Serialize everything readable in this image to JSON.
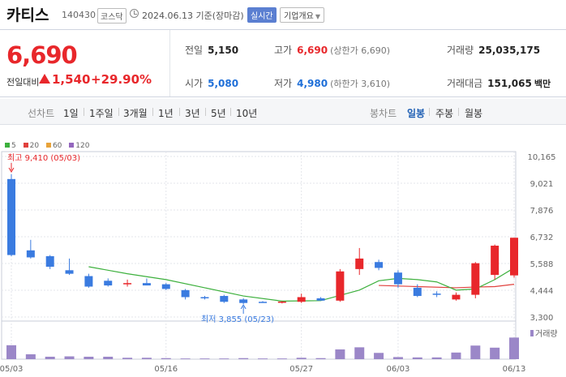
{
  "header": {
    "name": "카티스",
    "code": "140430",
    "market": "코스닥",
    "date": "2024.06.13",
    "basis": "기준(장마감)",
    "realtime": "실시간",
    "company_info": "기업개요"
  },
  "price": {
    "current": "6,690",
    "change_label": "전일대비",
    "change": "1,540",
    "change_pct": "+29.90%"
  },
  "stats": {
    "prev_label": "전일",
    "prev": "5,150",
    "high_label": "고가",
    "high": "6,690",
    "upper_limit": "(상한가 6,690)",
    "volume_label": "거래량",
    "volume": "25,035,175",
    "open_label": "시가",
    "open": "5,080",
    "low_label": "저가",
    "low": "4,980",
    "lower_limit": "(하한가 3,610)",
    "amount_label": "거래대금",
    "amount": "151,065",
    "amount_unit": "백만"
  },
  "period_bar": {
    "line_label": "선차트",
    "periods": [
      "1일",
      "1주일",
      "3개월",
      "1년",
      "3년",
      "5년",
      "10년"
    ],
    "candle_label": "봉차트",
    "candles": [
      "일봉",
      "주봉",
      "월봉"
    ],
    "candle_selected": "일봉"
  },
  "colors": {
    "up": "#e8272b",
    "down": "#3a7be0",
    "ma5": "#3db03d",
    "ma20": "#e0413d",
    "ma60": "#e8a33a",
    "ma120": "#9467bd",
    "volume": "#9b87c8"
  },
  "chart_data": {
    "type": "candlestick",
    "legend": [
      {
        "name": "5",
        "color": "#3db03d"
      },
      {
        "name": "20",
        "color": "#e0413d"
      },
      {
        "name": "60",
        "color": "#e8a33a"
      },
      {
        "name": "120",
        "color": "#9467bd"
      }
    ],
    "y_ticks": [
      "10,165",
      "9,021",
      "7,876",
      "6,732",
      "5,588",
      "4,444",
      "3,300"
    ],
    "ylim": [
      3300,
      10165
    ],
    "x_ticks": [
      {
        "label": "05/03",
        "index": 0
      },
      {
        "label": "05/16",
        "index": 8
      },
      {
        "label": "05/27",
        "index": 15
      },
      {
        "label": "06/03",
        "index": 20
      },
      {
        "label": "06/13",
        "index": 26
      }
    ],
    "annotations": {
      "high": "최고 9,410 (05/03)",
      "low": "최저 3,855 (05/23)"
    },
    "volume_label": "거래량",
    "candles": [
      {
        "o": 9200,
        "h": 9410,
        "l": 5900,
        "c": 5950
      },
      {
        "o": 6150,
        "h": 6600,
        "l": 5800,
        "c": 5850
      },
      {
        "o": 5900,
        "h": 5950,
        "l": 5350,
        "c": 5450
      },
      {
        "o": 5300,
        "h": 5800,
        "l": 5100,
        "c": 5150
      },
      {
        "o": 5050,
        "h": 5150,
        "l": 4550,
        "c": 4600
      },
      {
        "o": 4850,
        "h": 4950,
        "l": 4600,
        "c": 4650
      },
      {
        "o": 4700,
        "h": 4900,
        "l": 4600,
        "c": 4750
      },
      {
        "o": 4750,
        "h": 4950,
        "l": 4650,
        "c": 4650
      },
      {
        "o": 4700,
        "h": 4750,
        "l": 4450,
        "c": 4500
      },
      {
        "o": 4450,
        "h": 4500,
        "l": 4050,
        "c": 4150
      },
      {
        "o": 4150,
        "h": 4200,
        "l": 4050,
        "c": 4100
      },
      {
        "o": 4200,
        "h": 4250,
        "l": 3900,
        "c": 3950
      },
      {
        "o": 4050,
        "h": 4100,
        "l": 3855,
        "c": 3900
      },
      {
        "o": 3950,
        "h": 3980,
        "l": 3920,
        "c": 3940
      },
      {
        "o": 3930,
        "h": 3980,
        "l": 3880,
        "c": 3960
      },
      {
        "o": 3950,
        "h": 4300,
        "l": 3900,
        "c": 4150
      },
      {
        "o": 4100,
        "h": 4150,
        "l": 4000,
        "c": 4000
      },
      {
        "o": 4000,
        "h": 5350,
        "l": 3950,
        "c": 5250
      },
      {
        "o": 5350,
        "h": 6250,
        "l": 5100,
        "c": 5800
      },
      {
        "o": 5650,
        "h": 5750,
        "l": 5300,
        "c": 5400
      },
      {
        "o": 5200,
        "h": 5300,
        "l": 4550,
        "c": 4700
      },
      {
        "o": 4550,
        "h": 4700,
        "l": 4150,
        "c": 4200
      },
      {
        "o": 4300,
        "h": 4400,
        "l": 4150,
        "c": 4250
      },
      {
        "o": 4050,
        "h": 4350,
        "l": 4000,
        "c": 4250
      },
      {
        "o": 4250,
        "h": 5650,
        "l": 4100,
        "c": 5600
      },
      {
        "o": 5100,
        "h": 6400,
        "l": 4900,
        "c": 6350
      },
      {
        "o": 5080,
        "h": 6690,
        "l": 4980,
        "c": 6690
      }
    ],
    "ma5": [
      {
        "i": 4,
        "v": 5450
      },
      {
        "i": 6,
        "v": 5150
      },
      {
        "i": 8,
        "v": 4900
      },
      {
        "i": 10,
        "v": 4550
      },
      {
        "i": 12,
        "v": 4200
      },
      {
        "i": 14,
        "v": 3980
      },
      {
        "i": 16,
        "v": 4000
      },
      {
        "i": 18,
        "v": 4450
      },
      {
        "i": 19,
        "v": 4850
      },
      {
        "i": 20,
        "v": 4950
      },
      {
        "i": 21,
        "v": 4900
      },
      {
        "i": 22,
        "v": 4800
      },
      {
        "i": 23,
        "v": 4450
      },
      {
        "i": 24,
        "v": 4500
      },
      {
        "i": 25,
        "v": 4900
      },
      {
        "i": 26,
        "v": 5400
      }
    ],
    "ma20": [
      {
        "i": 19,
        "v": 4650
      },
      {
        "i": 21,
        "v": 4600
      },
      {
        "i": 23,
        "v": 4550
      },
      {
        "i": 24,
        "v": 4580
      },
      {
        "i": 25,
        "v": 4600
      },
      {
        "i": 26,
        "v": 4700
      }
    ],
    "volume": [
      0.4,
      0.14,
      0.07,
      0.08,
      0.07,
      0.07,
      0.04,
      0.04,
      0.03,
      0.02,
      0.02,
      0.02,
      0.03,
      0.02,
      0.02,
      0.04,
      0.03,
      0.28,
      0.34,
      0.18,
      0.06,
      0.05,
      0.05,
      0.19,
      0.39,
      0.33,
      0.62
    ]
  }
}
